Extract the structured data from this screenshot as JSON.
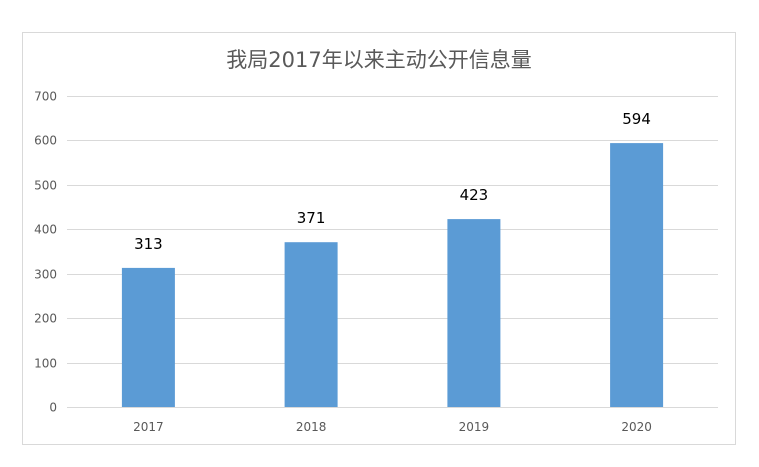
{
  "chart_data": {
    "type": "bar",
    "title": "我局2017年以来主动公开信息量",
    "xlabel": "",
    "ylabel": "",
    "categories": [
      "2017",
      "2018",
      "2019",
      "2020"
    ],
    "values": [
      313,
      371,
      423,
      594
    ],
    "ylim": [
      0,
      700
    ],
    "yticks": [
      0,
      100,
      200,
      300,
      400,
      500,
      600,
      700
    ],
    "grid": true,
    "legend": "none",
    "data_labels": true,
    "bar_color": "#5b9bd5",
    "grid_color": "#d9d9d9"
  }
}
